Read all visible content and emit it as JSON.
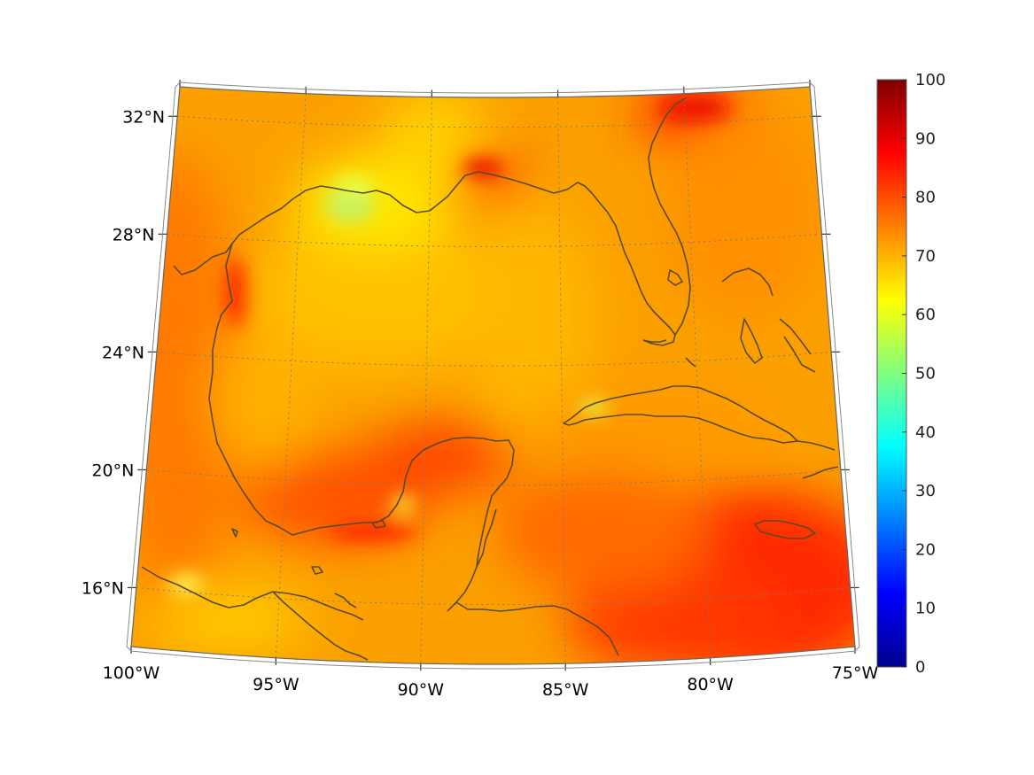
{
  "chart_data": {
    "type": "heatmap",
    "projection": "conic",
    "lon_ticks": [
      {
        "value": -100,
        "label": "100°W"
      },
      {
        "value": -95,
        "label": "95°W"
      },
      {
        "value": -90,
        "label": "90°W"
      },
      {
        "value": -85,
        "label": "85°W"
      },
      {
        "value": -80,
        "label": "80°W"
      },
      {
        "value": -75,
        "label": "75°W"
      }
    ],
    "lat_ticks": [
      {
        "value": 32,
        "label": "32°N"
      },
      {
        "value": 28,
        "label": "28°N"
      },
      {
        "value": 24,
        "label": "24°N"
      },
      {
        "value": 20,
        "label": "20°N"
      },
      {
        "value": 16,
        "label": "16°N"
      }
    ],
    "lon_range": [
      -100,
      -75
    ],
    "lat_range": [
      14,
      33
    ],
    "grid": true,
    "colorbar": {
      "min": 0,
      "max": 100,
      "ticks": [
        "0",
        "10",
        "20",
        "30",
        "40",
        "50",
        "60",
        "70",
        "80",
        "90",
        "100"
      ],
      "colormap": "jet"
    },
    "field_summary": {
      "typical_value": 72,
      "high_regions": [
        "western Caribbean south of Jamaica (~85)",
        "bay of Campeche (~82)",
        "north Florida / Georgia coast (~88)",
        "Mobile Bay (~90)"
      ],
      "low_regions": [
        "Louisiana coast (~60)",
        "Texas-Louisiana shelf (~62)"
      ]
    }
  },
  "style": {
    "coast_color": "#5a4a1e",
    "grid_color": "#7a7a7a"
  }
}
